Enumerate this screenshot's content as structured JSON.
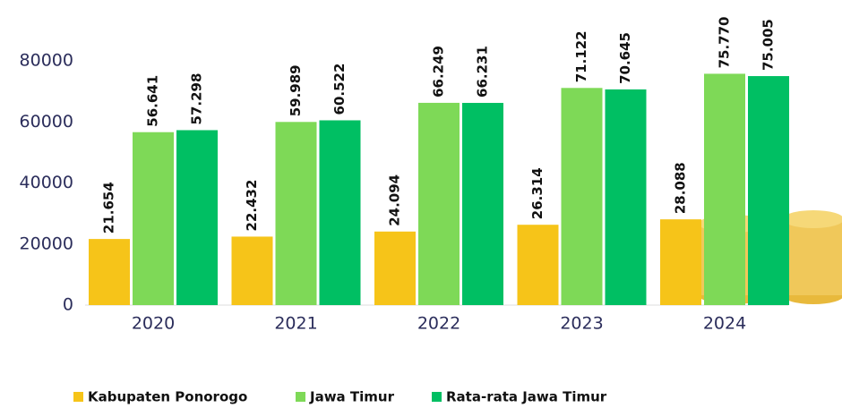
{
  "chart_data": {
    "type": "bar",
    "categories": [
      "2020",
      "2021",
      "2022",
      "2023",
      "2024"
    ],
    "series": [
      {
        "name": "Kabupaten Ponorogo",
        "color": "#f6c419",
        "values": [
          21654,
          22432,
          24094,
          26314,
          28088
        ],
        "value_labels": [
          "21.654",
          "22.432",
          "24.094",
          "26.314",
          "28.088"
        ]
      },
      {
        "name": "Jawa Timur",
        "color": "#7ed957",
        "values": [
          56641,
          59989,
          66249,
          71122,
          75770
        ],
        "value_labels": [
          "56.641",
          "59.989",
          "66.249",
          "71.122",
          "75.770"
        ]
      },
      {
        "name": "Rata-rata Jawa Timur",
        "color": "#00bf63",
        "values": [
          57298,
          60522,
          66231,
          70645,
          75005
        ],
        "value_labels": [
          "57.298",
          "60.522",
          "66.231",
          "70.645",
          "75.005"
        ]
      }
    ],
    "ylim": [
      0,
      80000
    ],
    "yticks": [
      0,
      20000,
      40000,
      60000,
      80000
    ],
    "grid": false,
    "legend": "bottom"
  }
}
